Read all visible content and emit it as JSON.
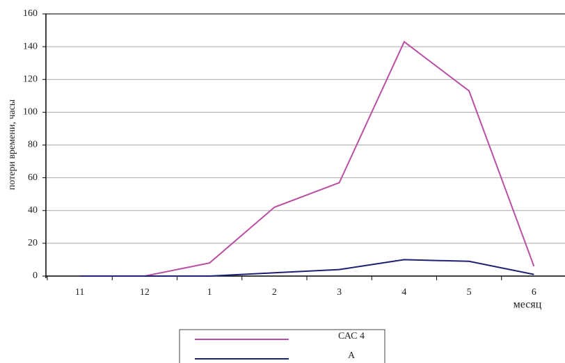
{
  "chart_data": {
    "type": "line",
    "x_label": "месяц",
    "y_label": "потери времени, часы",
    "categories": [
      "11",
      "12",
      "1",
      "2",
      "3",
      "4",
      "5",
      "6"
    ],
    "series": [
      {
        "name": "САС 4",
        "color": "#b94fa3",
        "values": [
          0,
          0,
          8,
          42,
          57,
          143,
          113,
          6
        ]
      },
      {
        "name": "А",
        "color": "#1f1f70",
        "values": [
          0,
          0,
          0,
          2,
          4,
          10,
          9,
          1
        ]
      }
    ],
    "ylim": [
      0,
      160
    ],
    "yticks": [
      0,
      20,
      40,
      60,
      80,
      100,
      120,
      140,
      160
    ],
    "grid": true
  }
}
